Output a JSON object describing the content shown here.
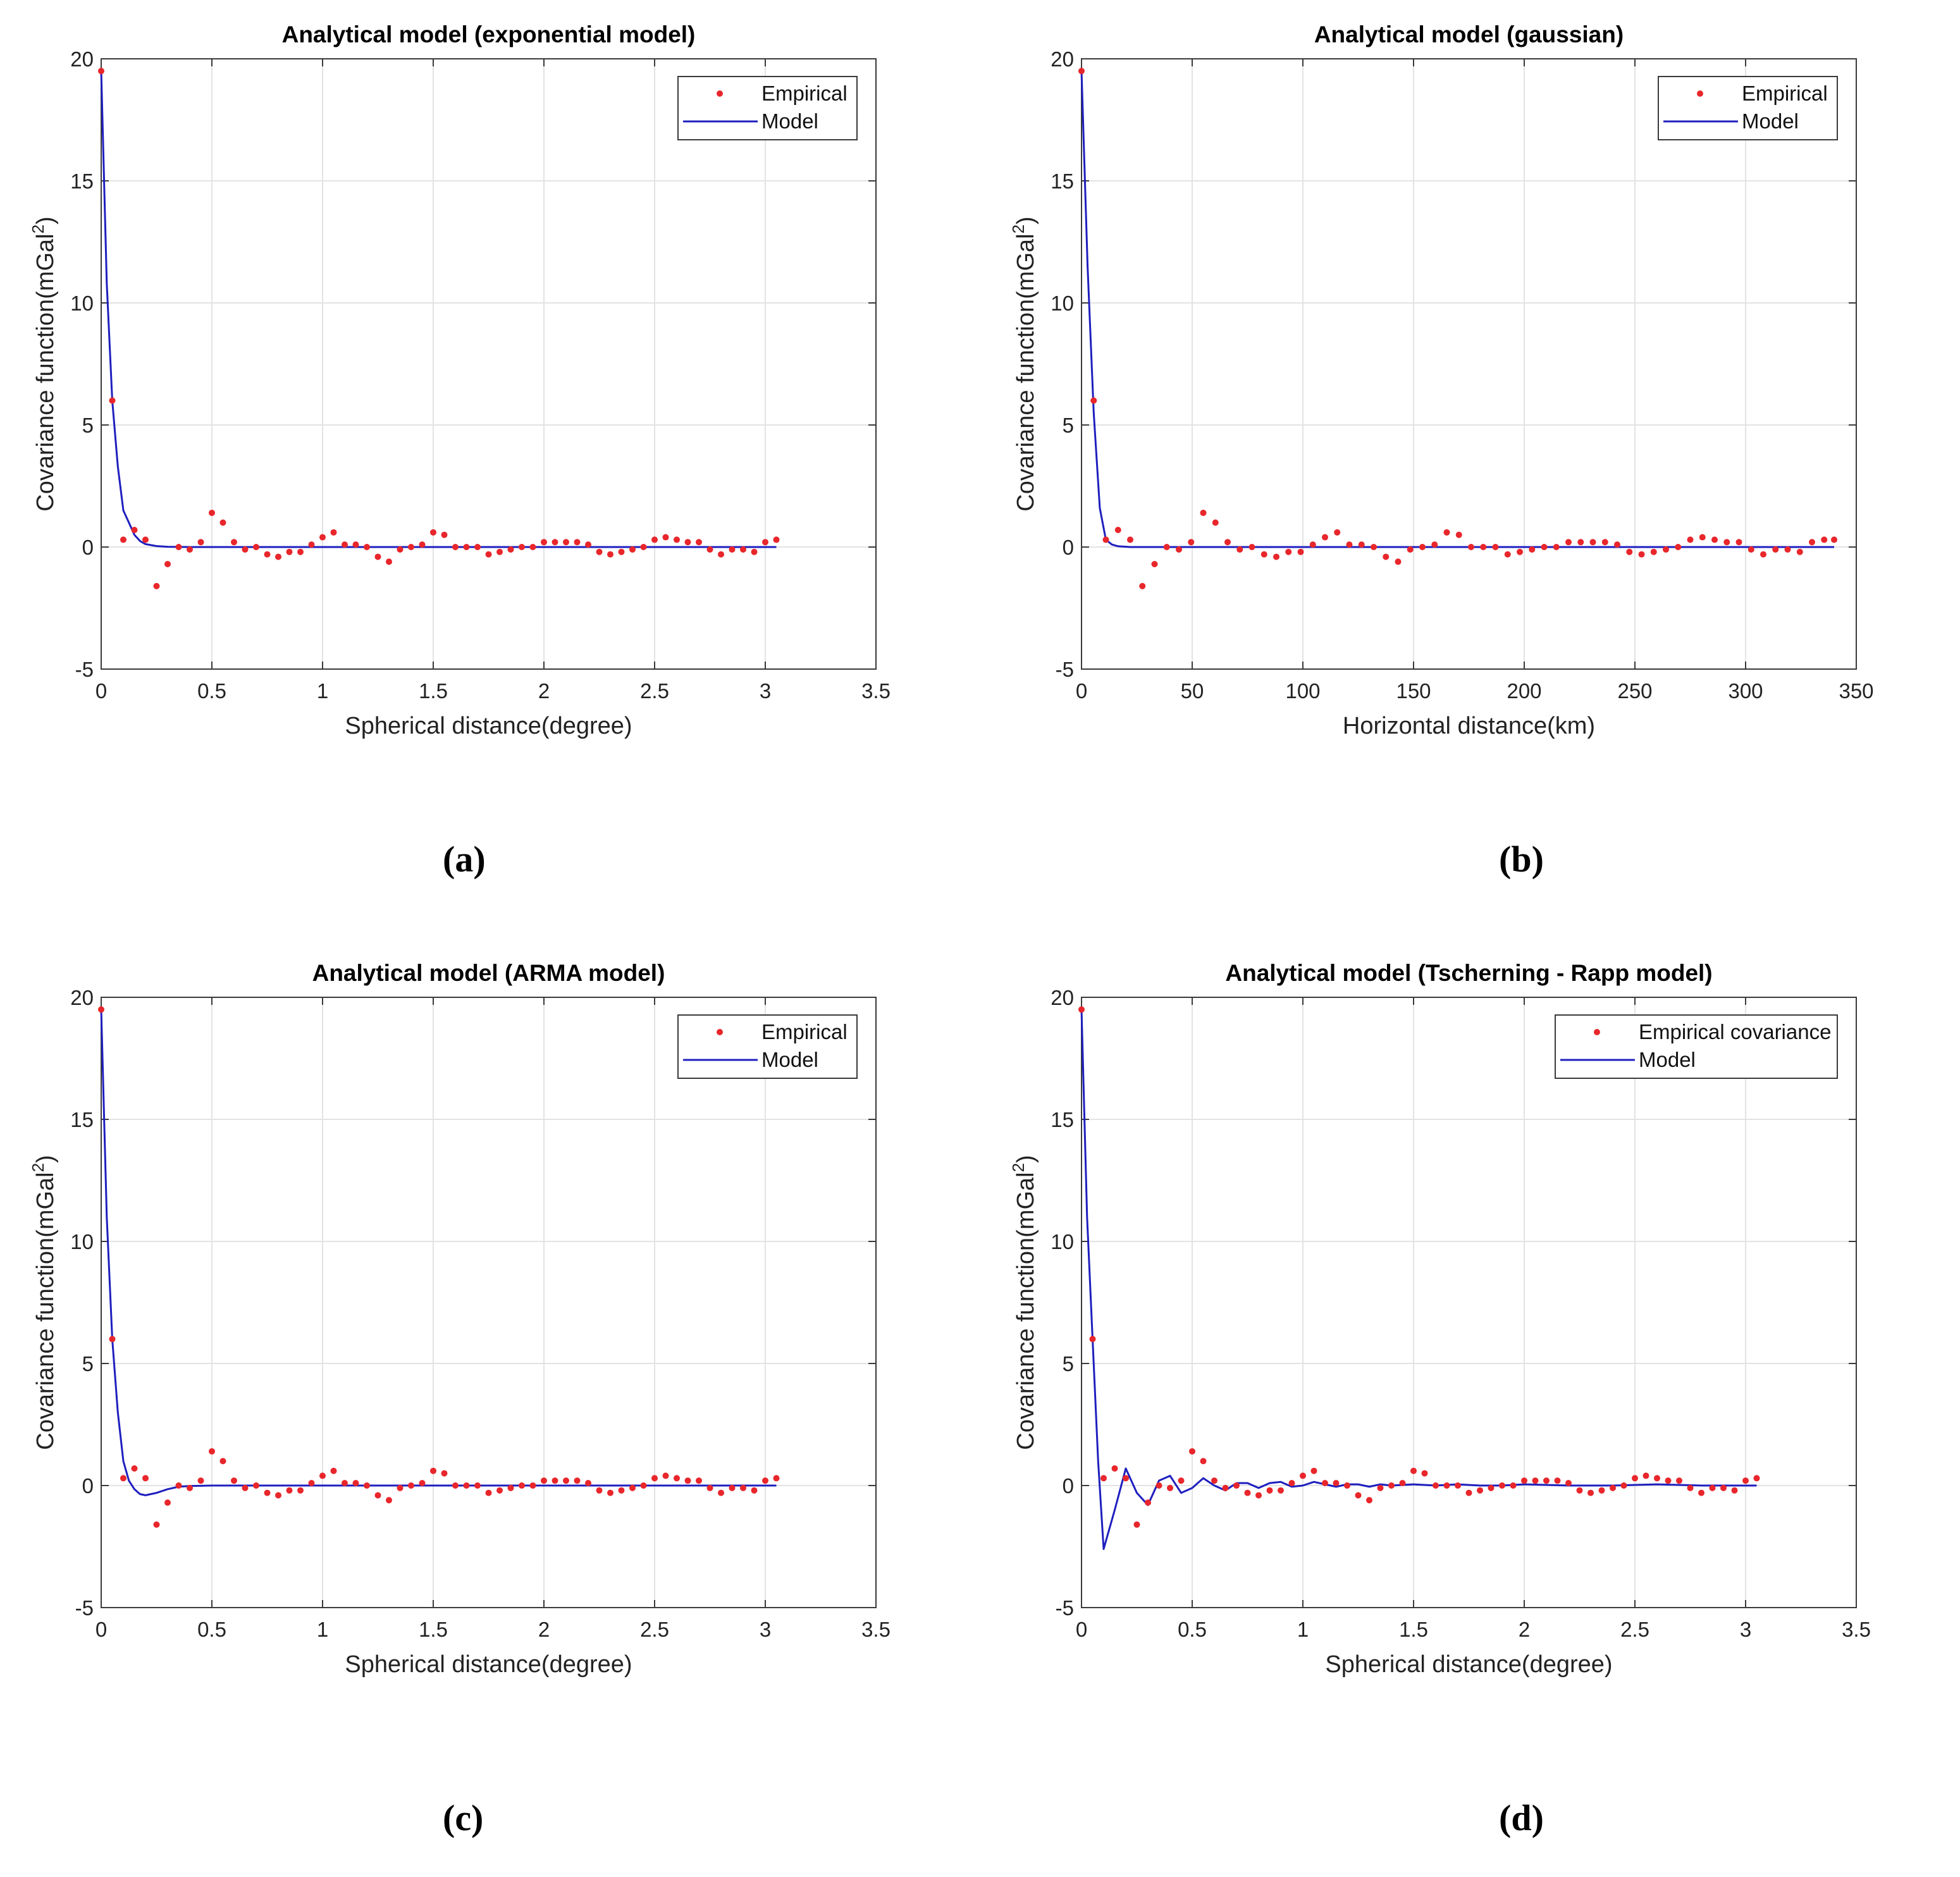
{
  "chart_data": [
    {
      "type": "scatter",
      "panel_label": "(a)",
      "title": "Analytical model (exponential model)",
      "xlabel": "Spherical distance(degree)",
      "ylabel": "Covariance function(mGal^2)",
      "ylabel_main": "Covariance function(mGal",
      "ylabel_sup": "2",
      "ylabel_close": ")",
      "xlim": [
        0,
        3.5
      ],
      "ylim": [
        -5,
        20
      ],
      "xticks": [
        0,
        0.5,
        1,
        1.5,
        2,
        2.5,
        3,
        3.5
      ],
      "xtick_labels": [
        "0",
        "0.5",
        "1",
        "1.5",
        "2",
        "2.5",
        "3",
        "3.5"
      ],
      "yticks": [
        -5,
        0,
        5,
        10,
        15,
        20
      ],
      "ytick_labels": [
        "-5",
        "0",
        "5",
        "10",
        "15",
        "20"
      ],
      "grid": true,
      "legend_position": "top-right",
      "legend_entries": [
        "Empirical",
        "Model"
      ],
      "series": [
        {
          "name": "Empirical",
          "x": [
            0,
            0.05,
            0.1,
            0.15,
            0.2,
            0.25,
            0.3,
            0.35,
            0.4,
            0.45,
            0.5,
            0.55,
            0.6,
            0.65,
            0.7,
            0.75,
            0.8,
            0.85,
            0.9,
            0.95,
            1.0,
            1.05,
            1.1,
            1.15,
            1.2,
            1.25,
            1.3,
            1.35,
            1.4,
            1.45,
            1.5,
            1.55,
            1.6,
            1.65,
            1.7,
            1.75,
            1.8,
            1.85,
            1.9,
            1.95,
            2.0,
            2.05,
            2.1,
            2.15,
            2.2,
            2.25,
            2.3,
            2.35,
            2.4,
            2.45,
            2.5,
            2.55,
            2.6,
            2.65,
            2.7,
            2.75,
            2.8,
            2.85,
            2.9,
            2.95,
            3.0,
            3.05
          ],
          "y": [
            19.5,
            6.0,
            0.3,
            0.7,
            0.3,
            -1.6,
            -0.7,
            0.0,
            -0.1,
            0.2,
            1.4,
            1.0,
            0.2,
            -0.1,
            0.0,
            -0.3,
            -0.4,
            -0.2,
            -0.2,
            0.1,
            0.4,
            0.6,
            0.1,
            0.1,
            0.0,
            -0.4,
            -0.6,
            -0.1,
            0.0,
            0.1,
            0.6,
            0.5,
            0.0,
            0.0,
            0.0,
            -0.3,
            -0.2,
            -0.1,
            0.0,
            0.0,
            0.2,
            0.2,
            0.2,
            0.2,
            0.1,
            -0.2,
            -0.3,
            -0.2,
            -0.1,
            0.0,
            0.3,
            0.4,
            0.3,
            0.2,
            0.2,
            -0.1,
            -0.3,
            -0.1,
            -0.1,
            -0.2,
            0.2,
            0.3
          ]
        },
        {
          "name": "Model",
          "x": [
            0,
            0.025,
            0.05,
            0.075,
            0.1,
            0.125,
            0.15,
            0.175,
            0.2,
            0.25,
            0.3,
            0.4,
            0.5,
            1.0,
            1.5,
            2.0,
            2.5,
            3.05
          ],
          "y": [
            19.5,
            10.8,
            6.0,
            3.3,
            1.5,
            1.0,
            0.5,
            0.25,
            0.12,
            0.04,
            0.01,
            0.0,
            0.0,
            0.0,
            0.0,
            0.0,
            0.0,
            0.0
          ]
        }
      ]
    },
    {
      "type": "scatter",
      "panel_label": "(b)",
      "title": "Analytical model (gaussian)",
      "xlabel": "Horizontal distance(km)",
      "ylabel": "Covariance function(mGal^2)",
      "ylabel_main": "Covariance function(mGal",
      "ylabel_sup": "2",
      "ylabel_close": ")",
      "xlim": [
        0,
        350
      ],
      "ylim": [
        -5,
        20
      ],
      "xticks": [
        0,
        50,
        100,
        150,
        200,
        250,
        300,
        350
      ],
      "xtick_labels": [
        "0",
        "50",
        "100",
        "150",
        "200",
        "250",
        "300",
        "350"
      ],
      "yticks": [
        -5,
        0,
        5,
        10,
        15,
        20
      ],
      "ytick_labels": [
        "-5",
        "0",
        "5",
        "10",
        "15",
        "20"
      ],
      "grid": true,
      "legend_position": "top-right",
      "legend_entries": [
        "Empirical",
        "Model"
      ],
      "series": [
        {
          "name": "Empirical",
          "x": [
            0,
            5.5,
            11,
            16.5,
            22,
            27.5,
            33,
            38.5,
            44,
            49.5,
            55,
            60.5,
            66,
            71.5,
            77,
            82.5,
            88,
            93.5,
            99,
            104.5,
            110,
            115.5,
            121,
            126.5,
            132,
            137.5,
            143,
            148.5,
            154,
            159.5,
            165,
            170.5,
            176,
            181.5,
            187,
            192.5,
            198,
            203.5,
            209,
            214.5,
            220,
            225.5,
            231,
            236.5,
            242,
            247.5,
            253,
            258.5,
            264,
            269.5,
            275,
            280.5,
            286,
            291.5,
            297,
            302.5,
            308,
            313.5,
            319,
            324.5,
            330,
            335.5,
            340
          ],
          "y": [
            19.5,
            6.0,
            0.3,
            0.7,
            0.3,
            -1.6,
            -0.7,
            0.0,
            -0.1,
            0.2,
            1.4,
            1.0,
            0.2,
            -0.1,
            0.0,
            -0.3,
            -0.4,
            -0.2,
            -0.2,
            0.1,
            0.4,
            0.6,
            0.1,
            0.1,
            0.0,
            -0.4,
            -0.6,
            -0.1,
            0.0,
            0.1,
            0.6,
            0.5,
            0.0,
            0.0,
            0.0,
            -0.3,
            -0.2,
            -0.1,
            0.0,
            0.0,
            0.2,
            0.2,
            0.2,
            0.2,
            0.1,
            -0.2,
            -0.3,
            -0.2,
            -0.1,
            0.0,
            0.3,
            0.4,
            0.3,
            0.2,
            0.2,
            -0.1,
            -0.3,
            -0.1,
            -0.1,
            -0.2,
            0.2,
            0.3,
            0.3
          ]
        },
        {
          "name": "Model",
          "x": [
            0,
            2.75,
            5.5,
            8.25,
            11,
            13.75,
            16.5,
            22,
            33,
            50,
            100,
            200,
            340
          ],
          "y": [
            19.5,
            11.5,
            5.5,
            1.6,
            0.3,
            0.1,
            0.03,
            0.0,
            0.0,
            0.0,
            0.0,
            0.0,
            0.0
          ]
        }
      ]
    },
    {
      "type": "scatter",
      "panel_label": "(c)",
      "title": "Analytical model (ARMA model)",
      "xlabel": "Spherical distance(degree)",
      "ylabel": "Covariance function(mGal^2)",
      "ylabel_main": "Covariance function(mGal",
      "ylabel_sup": "2",
      "ylabel_close": ")",
      "xlim": [
        0,
        3.5
      ],
      "ylim": [
        -5,
        20
      ],
      "xticks": [
        0,
        0.5,
        1,
        1.5,
        2,
        2.5,
        3,
        3.5
      ],
      "xtick_labels": [
        "0",
        "0.5",
        "1",
        "1.5",
        "2",
        "2.5",
        "3",
        "3.5"
      ],
      "yticks": [
        -5,
        0,
        5,
        10,
        15,
        20
      ],
      "ytick_labels": [
        "-5",
        "0",
        "5",
        "10",
        "15",
        "20"
      ],
      "grid": true,
      "legend_position": "top-right",
      "legend_entries": [
        "Empirical",
        "Model"
      ],
      "series": [
        {
          "name": "Empirical",
          "x": [
            0,
            0.05,
            0.1,
            0.15,
            0.2,
            0.25,
            0.3,
            0.35,
            0.4,
            0.45,
            0.5,
            0.55,
            0.6,
            0.65,
            0.7,
            0.75,
            0.8,
            0.85,
            0.9,
            0.95,
            1.0,
            1.05,
            1.1,
            1.15,
            1.2,
            1.25,
            1.3,
            1.35,
            1.4,
            1.45,
            1.5,
            1.55,
            1.6,
            1.65,
            1.7,
            1.75,
            1.8,
            1.85,
            1.9,
            1.95,
            2.0,
            2.05,
            2.1,
            2.15,
            2.2,
            2.25,
            2.3,
            2.35,
            2.4,
            2.45,
            2.5,
            2.55,
            2.6,
            2.65,
            2.7,
            2.75,
            2.8,
            2.85,
            2.9,
            2.95,
            3.0,
            3.05
          ],
          "y": [
            19.5,
            6.0,
            0.3,
            0.7,
            0.3,
            -1.6,
            -0.7,
            0.0,
            -0.1,
            0.2,
            1.4,
            1.0,
            0.2,
            -0.1,
            0.0,
            -0.3,
            -0.4,
            -0.2,
            -0.2,
            0.1,
            0.4,
            0.6,
            0.1,
            0.1,
            0.0,
            -0.4,
            -0.6,
            -0.1,
            0.0,
            0.1,
            0.6,
            0.5,
            0.0,
            0.0,
            0.0,
            -0.3,
            -0.2,
            -0.1,
            0.0,
            0.0,
            0.2,
            0.2,
            0.2,
            0.2,
            0.1,
            -0.2,
            -0.3,
            -0.2,
            -0.1,
            0.0,
            0.3,
            0.4,
            0.3,
            0.2,
            0.2,
            -0.1,
            -0.3,
            -0.1,
            -0.1,
            -0.2,
            0.2,
            0.3
          ]
        },
        {
          "name": "Model",
          "x": [
            0,
            0.025,
            0.05,
            0.075,
            0.1,
            0.125,
            0.15,
            0.175,
            0.2,
            0.25,
            0.3,
            0.35,
            0.4,
            0.5,
            0.6,
            0.8,
            1.0,
            1.5,
            2.0,
            2.5,
            3.05
          ],
          "y": [
            19.5,
            11.0,
            6.0,
            3.0,
            1.0,
            0.2,
            -0.15,
            -0.35,
            -0.4,
            -0.3,
            -0.15,
            -0.05,
            -0.02,
            0.0,
            0.0,
            0.0,
            0.0,
            0.0,
            0.0,
            0.0,
            0.0
          ]
        }
      ]
    },
    {
      "type": "scatter",
      "panel_label": "(d)",
      "title": "Analytical model (Tscherning - Rapp model)",
      "xlabel": "Spherical distance(degree)",
      "ylabel": "Covariance function(mGal^2)",
      "ylabel_main": "Covariance function(mGal",
      "ylabel_sup": "2",
      "ylabel_close": ")",
      "xlim": [
        0,
        3.5
      ],
      "ylim": [
        -5,
        20
      ],
      "xticks": [
        0,
        0.5,
        1,
        1.5,
        2,
        2.5,
        3,
        3.5
      ],
      "xtick_labels": [
        "0",
        "0.5",
        "1",
        "1.5",
        "2",
        "2.5",
        "3",
        "3.5"
      ],
      "yticks": [
        -5,
        0,
        5,
        10,
        15,
        20
      ],
      "ytick_labels": [
        "-5",
        "0",
        "5",
        "10",
        "15",
        "20"
      ],
      "grid": true,
      "legend_position": "top-right",
      "legend_entries": [
        "Empirical covariance",
        "Model"
      ],
      "series": [
        {
          "name": "Empirical covariance",
          "x": [
            0,
            0.05,
            0.1,
            0.15,
            0.2,
            0.25,
            0.3,
            0.35,
            0.4,
            0.45,
            0.5,
            0.55,
            0.6,
            0.65,
            0.7,
            0.75,
            0.8,
            0.85,
            0.9,
            0.95,
            1.0,
            1.05,
            1.1,
            1.15,
            1.2,
            1.25,
            1.3,
            1.35,
            1.4,
            1.45,
            1.5,
            1.55,
            1.6,
            1.65,
            1.7,
            1.75,
            1.8,
            1.85,
            1.9,
            1.95,
            2.0,
            2.05,
            2.1,
            2.15,
            2.2,
            2.25,
            2.3,
            2.35,
            2.4,
            2.45,
            2.5,
            2.55,
            2.6,
            2.65,
            2.7,
            2.75,
            2.8,
            2.85,
            2.9,
            2.95,
            3.0,
            3.05
          ],
          "y": [
            19.5,
            6.0,
            0.3,
            0.7,
            0.3,
            -1.6,
            -0.7,
            0.0,
            -0.1,
            0.2,
            1.4,
            1.0,
            0.2,
            -0.1,
            0.0,
            -0.3,
            -0.4,
            -0.2,
            -0.2,
            0.1,
            0.4,
            0.6,
            0.1,
            0.1,
            0.0,
            -0.4,
            -0.6,
            -0.1,
            0.0,
            0.1,
            0.6,
            0.5,
            0.0,
            0.0,
            0.0,
            -0.3,
            -0.2,
            -0.1,
            0.0,
            0.0,
            0.2,
            0.2,
            0.2,
            0.2,
            0.1,
            -0.2,
            -0.3,
            -0.2,
            -0.1,
            0.0,
            0.3,
            0.4,
            0.3,
            0.2,
            0.2,
            -0.1,
            -0.3,
            -0.1,
            -0.1,
            -0.2,
            0.2,
            0.3
          ]
        },
        {
          "name": "Model",
          "x": [
            0,
            0.025,
            0.05,
            0.075,
            0.1,
            0.15,
            0.2,
            0.25,
            0.3,
            0.35,
            0.4,
            0.45,
            0.5,
            0.55,
            0.6,
            0.65,
            0.7,
            0.75,
            0.8,
            0.85,
            0.9,
            0.95,
            1.0,
            1.05,
            1.1,
            1.15,
            1.2,
            1.25,
            1.3,
            1.35,
            1.4,
            1.5,
            1.6,
            1.7,
            1.8,
            1.9,
            2.0,
            2.2,
            2.4,
            2.6,
            2.8,
            3.05
          ],
          "y": [
            19.5,
            11.0,
            6.0,
            1.0,
            -2.6,
            -1.0,
            0.7,
            -0.3,
            -0.8,
            0.2,
            0.4,
            -0.3,
            -0.1,
            0.3,
            0.0,
            -0.2,
            0.1,
            0.1,
            -0.1,
            0.1,
            0.15,
            -0.05,
            0.0,
            0.15,
            0.05,
            -0.05,
            0.05,
            0.05,
            -0.05,
            0.05,
            0.0,
            0.05,
            0.0,
            0.05,
            0.0,
            0.0,
            0.05,
            0.0,
            0.0,
            0.05,
            0.0,
            0.0
          ]
        }
      ]
    }
  ]
}
